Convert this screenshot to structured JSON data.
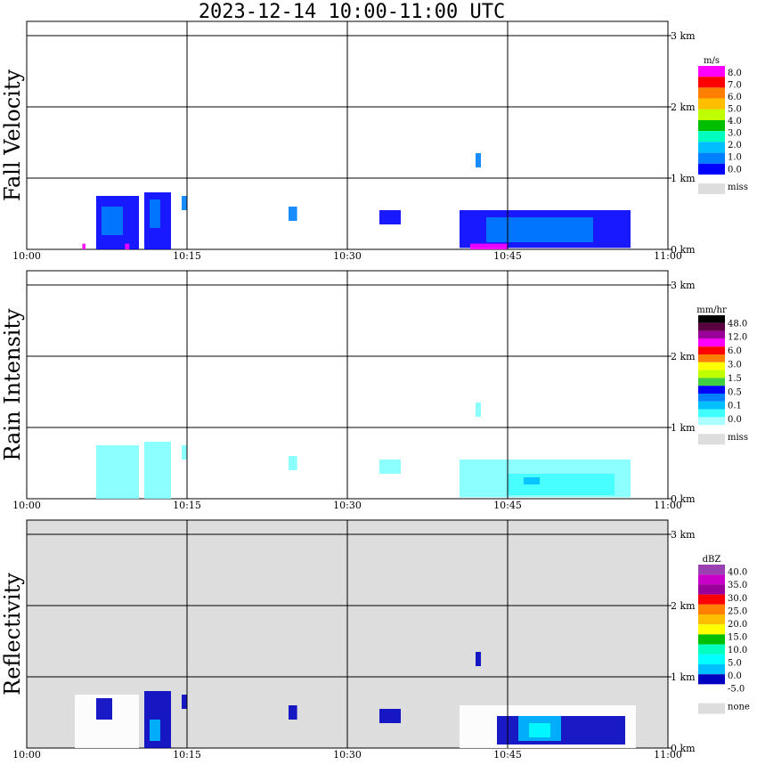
{
  "title": "2023-12-14   10:00-11:00 UTC",
  "chart_data": [
    {
      "type": "heatmap",
      "panel": "fall-velocity",
      "ylabel": "Fall Velocity",
      "xlim": [
        "10:00",
        "11:00"
      ],
      "x_ticks": [
        "10:00",
        "10:15",
        "10:30",
        "10:45",
        "11:00"
      ],
      "ylim_km": [
        0,
        3.2
      ],
      "y_ticks": [
        "0 km",
        "1 km",
        "2 km",
        "3 km"
      ],
      "background": "#ffffff",
      "legend": {
        "unit": "m/s",
        "colors": [
          "#ff00ff",
          "#ff0000",
          "#ff7f00",
          "#ffbf00",
          "#bfff00",
          "#00bf00",
          "#00ffbf",
          "#00bfff",
          "#007fff",
          "#0000ff"
        ],
        "labels": [
          "8.0",
          "7.0",
          "6.0",
          "5.0",
          "4.0",
          "3.0",
          "2.0",
          "1.0",
          "0.0"
        ],
        "miss_color": "#dddddd",
        "miss_label": "miss"
      },
      "echoes": [
        {
          "t_min": 6.5,
          "t_max": 10.5,
          "h_min": 0.0,
          "h_max": 0.75,
          "color": "#0000ff"
        },
        {
          "t_min": 7.0,
          "t_max": 9.0,
          "h_min": 0.2,
          "h_max": 0.6,
          "color": "#007fff"
        },
        {
          "t_min": 11.0,
          "t_max": 13.5,
          "h_min": 0.0,
          "h_max": 0.8,
          "color": "#0000ff"
        },
        {
          "t_min": 11.5,
          "t_max": 12.5,
          "h_min": 0.3,
          "h_max": 0.7,
          "color": "#007fff"
        },
        {
          "t_min": 14.5,
          "t_max": 15.0,
          "h_min": 0.55,
          "h_max": 0.75,
          "color": "#007fff"
        },
        {
          "t_min": 24.5,
          "t_max": 25.3,
          "h_min": 0.4,
          "h_max": 0.6,
          "color": "#007fff"
        },
        {
          "t_min": 33.0,
          "t_max": 35.0,
          "h_min": 0.35,
          "h_max": 0.55,
          "color": "#0000ff"
        },
        {
          "t_min": 42.0,
          "t_max": 42.5,
          "h_min": 1.15,
          "h_max": 1.35,
          "color": "#007fff"
        },
        {
          "t_min": 40.5,
          "t_max": 56.5,
          "h_min": 0.02,
          "h_max": 0.55,
          "color": "#0000ff"
        },
        {
          "t_min": 43.0,
          "t_max": 53.0,
          "h_min": 0.1,
          "h_max": 0.45,
          "color": "#007fff"
        },
        {
          "t_min": 41.5,
          "t_max": 45.0,
          "h_min": 0.0,
          "h_max": 0.08,
          "color": "#ff00ff"
        },
        {
          "t_min": 5.2,
          "t_max": 5.5,
          "h_min": 0.0,
          "h_max": 0.08,
          "color": "#ff00ff"
        },
        {
          "t_min": 9.2,
          "t_max": 9.6,
          "h_min": 0.0,
          "h_max": 0.08,
          "color": "#ff00ff"
        }
      ]
    },
    {
      "type": "heatmap",
      "panel": "rain-intensity",
      "ylabel": "Rain Intensity",
      "xlim": [
        "10:00",
        "11:00"
      ],
      "x_ticks": [
        "10:00",
        "10:15",
        "10:30",
        "10:45",
        "11:00"
      ],
      "ylim_km": [
        0,
        3.2
      ],
      "y_ticks": [
        "0 km",
        "1 km",
        "2 km",
        "3 km"
      ],
      "background": "#ffffff",
      "legend": {
        "unit": "mm/hr",
        "colors": [
          "#000000",
          "#5a0040",
          "#9a009a",
          "#ff00ff",
          "#ff0000",
          "#ff7f00",
          "#ffff00",
          "#bfff00",
          "#40d040",
          "#0000ff",
          "#007fff",
          "#00bfff",
          "#40ffff",
          "#aaffff"
        ],
        "labels": [
          "48.0",
          "12.0",
          "6.0",
          "3.0",
          "1.5",
          "0.5",
          "0.1",
          "0.0"
        ],
        "miss_color": "#dddddd",
        "miss_label": "miss"
      },
      "echoes": [
        {
          "t_min": 6.5,
          "t_max": 10.5,
          "h_min": 0.0,
          "h_max": 0.75,
          "color": "#80ffff"
        },
        {
          "t_min": 11.0,
          "t_max": 13.5,
          "h_min": 0.0,
          "h_max": 0.8,
          "color": "#80ffff"
        },
        {
          "t_min": 14.5,
          "t_max": 15.0,
          "h_min": 0.55,
          "h_max": 0.75,
          "color": "#80ffff"
        },
        {
          "t_min": 24.5,
          "t_max": 25.3,
          "h_min": 0.4,
          "h_max": 0.6,
          "color": "#80ffff"
        },
        {
          "t_min": 33.0,
          "t_max": 35.0,
          "h_min": 0.35,
          "h_max": 0.55,
          "color": "#80ffff"
        },
        {
          "t_min": 42.0,
          "t_max": 42.5,
          "h_min": 1.15,
          "h_max": 1.35,
          "color": "#80ffff"
        },
        {
          "t_min": 40.5,
          "t_max": 56.5,
          "h_min": 0.02,
          "h_max": 0.55,
          "color": "#80ffff"
        },
        {
          "t_min": 45.0,
          "t_max": 55.0,
          "h_min": 0.05,
          "h_max": 0.35,
          "color": "#40ffff"
        },
        {
          "t_min": 46.5,
          "t_max": 48.0,
          "h_min": 0.2,
          "h_max": 0.3,
          "color": "#00bfff"
        }
      ]
    },
    {
      "type": "heatmap",
      "panel": "reflectivity",
      "ylabel": "Reflectivity",
      "xlim": [
        "10:00",
        "11:00"
      ],
      "x_ticks": [
        "10:00",
        "10:15",
        "10:30",
        "10:45",
        "11:00"
      ],
      "ylim_km": [
        0,
        3.2
      ],
      "y_ticks": [
        "0 km",
        "1 km",
        "2 km",
        "3 km"
      ],
      "background": "#dddddd",
      "legend": {
        "unit": "dBZ",
        "colors": [
          "#9a40b0",
          "#c800c8",
          "#9a009a",
          "#ff0000",
          "#ff7f00",
          "#ffbf00",
          "#ffff00",
          "#00bf00",
          "#00ffbf",
          "#00ffff",
          "#00bfff",
          "#0000c0",
          "#ffffff"
        ],
        "labels": [
          "40.0",
          "35.0",
          "30.0",
          "25.0",
          "20.0",
          "15.0",
          "10.0",
          "5.0",
          "0.0",
          "-5.0"
        ],
        "miss_color": "#dddddd",
        "miss_label": "none"
      },
      "echoes": [
        {
          "t_min": 4.5,
          "t_max": 10.5,
          "h_min": 0.0,
          "h_max": 0.75,
          "color": "#ffffff"
        },
        {
          "t_min": 6.5,
          "t_max": 8.0,
          "h_min": 0.4,
          "h_max": 0.7,
          "color": "#0000c0"
        },
        {
          "t_min": 11.0,
          "t_max": 13.5,
          "h_min": 0.0,
          "h_max": 0.8,
          "color": "#0000c0"
        },
        {
          "t_min": 11.5,
          "t_max": 12.5,
          "h_min": 0.1,
          "h_max": 0.4,
          "color": "#00bfff"
        },
        {
          "t_min": 14.5,
          "t_max": 15.0,
          "h_min": 0.55,
          "h_max": 0.75,
          "color": "#0000c0"
        },
        {
          "t_min": 24.5,
          "t_max": 25.3,
          "h_min": 0.4,
          "h_max": 0.6,
          "color": "#0000c0"
        },
        {
          "t_min": 33.0,
          "t_max": 35.0,
          "h_min": 0.35,
          "h_max": 0.55,
          "color": "#0000c0"
        },
        {
          "t_min": 42.0,
          "t_max": 42.5,
          "h_min": 1.15,
          "h_max": 1.35,
          "color": "#0000c0"
        },
        {
          "t_min": 40.5,
          "t_max": 57.0,
          "h_min": 0.0,
          "h_max": 0.6,
          "color": "#ffffff"
        },
        {
          "t_min": 44.0,
          "t_max": 56.0,
          "h_min": 0.05,
          "h_max": 0.45,
          "color": "#0000c0"
        },
        {
          "t_min": 46.0,
          "t_max": 50.0,
          "h_min": 0.1,
          "h_max": 0.45,
          "color": "#00bfff"
        },
        {
          "t_min": 47.0,
          "t_max": 49.0,
          "h_min": 0.15,
          "h_max": 0.35,
          "color": "#00ffff"
        }
      ]
    }
  ]
}
